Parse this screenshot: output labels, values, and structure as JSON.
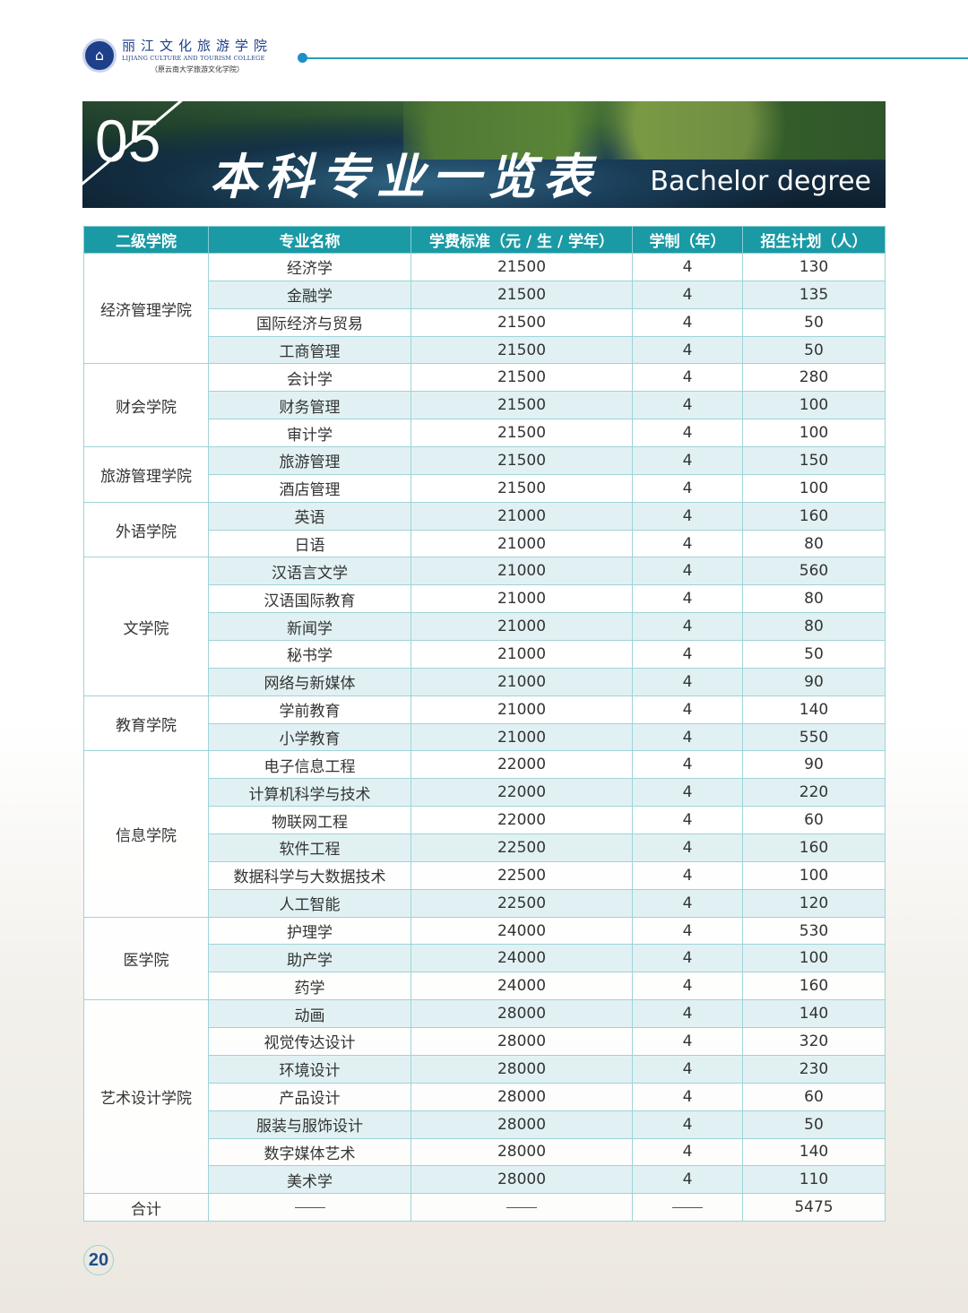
{
  "header": {
    "school_cn": "丽江文化旅游学院",
    "school_en": "LIJIANG CULTURE AND TOURISM COLLEGE",
    "school_former": "（原云南大学旅游文化学院）"
  },
  "banner": {
    "number": "05",
    "title": "本科专业一览表",
    "subtitle": "Bachelor degree"
  },
  "table": {
    "columns": [
      "二级学院",
      "专业名称",
      "学费标准（元 / 生 / 学年）",
      "学制（年）",
      "招生计划（人）"
    ],
    "groups": [
      {
        "college": "经济管理学院",
        "majors": [
          [
            "经济学",
            "21500",
            "4",
            "130"
          ],
          [
            "金融学",
            "21500",
            "4",
            "135"
          ],
          [
            "国际经济与贸易",
            "21500",
            "4",
            "50"
          ],
          [
            "工商管理",
            "21500",
            "4",
            "50"
          ]
        ]
      },
      {
        "college": "财会学院",
        "majors": [
          [
            "会计学",
            "21500",
            "4",
            "280"
          ],
          [
            "财务管理",
            "21500",
            "4",
            "100"
          ],
          [
            "审计学",
            "21500",
            "4",
            "100"
          ]
        ]
      },
      {
        "college": "旅游管理学院",
        "majors": [
          [
            "旅游管理",
            "21500",
            "4",
            "150"
          ],
          [
            "酒店管理",
            "21500",
            "4",
            "100"
          ]
        ]
      },
      {
        "college": "外语学院",
        "majors": [
          [
            "英语",
            "21000",
            "4",
            "160"
          ],
          [
            "日语",
            "21000",
            "4",
            "80"
          ]
        ]
      },
      {
        "college": "文学院",
        "majors": [
          [
            "汉语言文学",
            "21000",
            "4",
            "560"
          ],
          [
            "汉语国际教育",
            "21000",
            "4",
            "80"
          ],
          [
            "新闻学",
            "21000",
            "4",
            "80"
          ],
          [
            "秘书学",
            "21000",
            "4",
            "50"
          ],
          [
            "网络与新媒体",
            "21000",
            "4",
            "90"
          ]
        ]
      },
      {
        "college": "教育学院",
        "majors": [
          [
            "学前教育",
            "21000",
            "4",
            "140"
          ],
          [
            "小学教育",
            "21000",
            "4",
            "550"
          ]
        ]
      },
      {
        "college": "信息学院",
        "majors": [
          [
            "电子信息工程",
            "22000",
            "4",
            "90"
          ],
          [
            "计算机科学与技术",
            "22000",
            "4",
            "220"
          ],
          [
            "物联网工程",
            "22000",
            "4",
            "60"
          ],
          [
            "软件工程",
            "22500",
            "4",
            "160"
          ],
          [
            "数据科学与大数据技术",
            "22500",
            "4",
            "100"
          ],
          [
            "人工智能",
            "22500",
            "4",
            "120"
          ]
        ]
      },
      {
        "college": "医学院",
        "majors": [
          [
            "护理学",
            "24000",
            "4",
            "530"
          ],
          [
            "助产学",
            "24000",
            "4",
            "100"
          ],
          [
            "药学",
            "24000",
            "4",
            "160"
          ]
        ]
      },
      {
        "college": "艺术设计学院",
        "majors": [
          [
            "动画",
            "28000",
            "4",
            "140"
          ],
          [
            "视觉传达设计",
            "28000",
            "4",
            "320"
          ],
          [
            "环境设计",
            "28000",
            "4",
            "230"
          ],
          [
            "产品设计",
            "28000",
            "4",
            "60"
          ],
          [
            "服装与服饰设计",
            "28000",
            "4",
            "50"
          ],
          [
            "数字媒体艺术",
            "28000",
            "4",
            "140"
          ],
          [
            "美术学",
            "28000",
            "4",
            "110"
          ]
        ]
      }
    ],
    "total": {
      "label": "合计",
      "value": "5475"
    }
  },
  "page_number": "20",
  "colors": {
    "header_bg": "#1a9aa5",
    "row_tint": "#e1f1f3",
    "brand_blue": "#1e3f8a"
  }
}
